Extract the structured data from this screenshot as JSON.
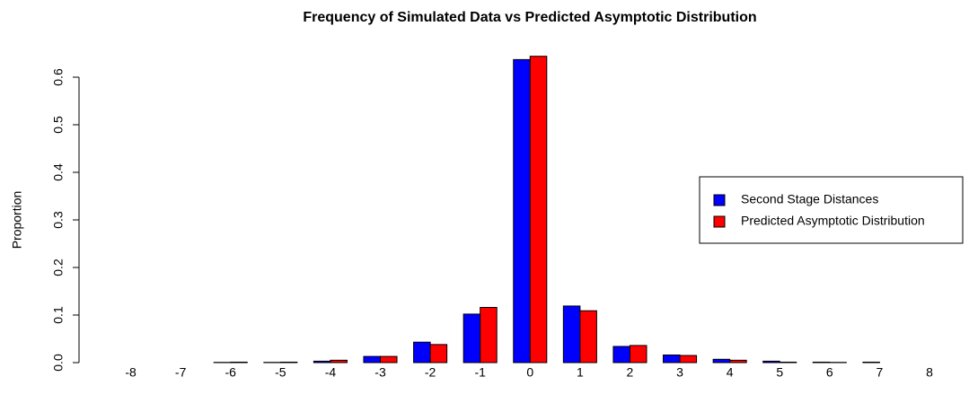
{
  "chart_data": {
    "type": "bar",
    "title": "Frequency of Simulated Data vs Predicted Asymptotic Distribution",
    "y_label": "Proportion",
    "categories": [
      "-8",
      "-7",
      "-6",
      "-5",
      "-4",
      "-3",
      "-2",
      "-1",
      "0",
      "1",
      "2",
      "3",
      "4",
      "5",
      "6",
      "7",
      "8"
    ],
    "series": [
      {
        "name": "Second Stage Distances",
        "color": "#0000ff",
        "values": [
          0,
          0,
          0.0005,
          0.0005,
          0.003,
          0.013,
          0.043,
          0.102,
          0.637,
          0.119,
          0.034,
          0.016,
          0.007,
          0.003,
          0.001,
          0.001,
          0
        ]
      },
      {
        "name": "Predicted Asymptotic Distribution",
        "color": "#ff0000",
        "values": [
          0,
          0,
          0.001,
          0.001,
          0.005,
          0.013,
          0.038,
          0.116,
          0.644,
          0.109,
          0.036,
          0.015,
          0.005,
          0.001,
          0.0005,
          0,
          0
        ]
      }
    ],
    "ylim": [
      0,
      0.65
    ],
    "yticks": [
      {
        "value": 0,
        "label": "0.0"
      },
      0.1,
      0.2,
      0.3,
      0.4,
      0.5,
      0.6
    ],
    "legend": "right"
  }
}
